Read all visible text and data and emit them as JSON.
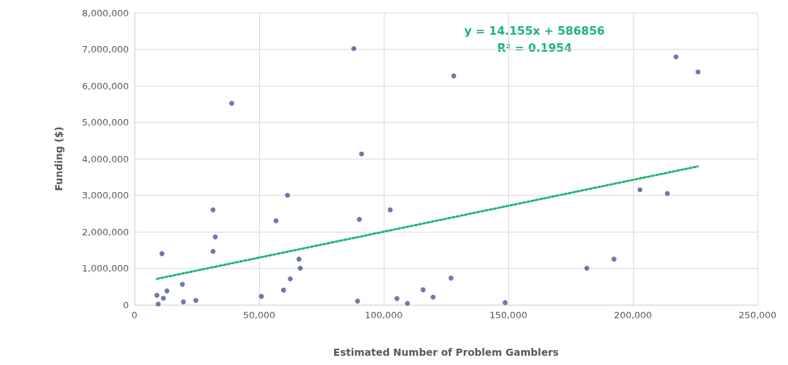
{
  "chart_data": {
    "type": "scatter",
    "xlabel": "Estimated Number of Problem Gamblers",
    "ylabel": "Funding ($)",
    "xlim": [
      0,
      250000
    ],
    "xticks": [
      0,
      {
        "value": 50000,
        "label": "50,000"
      },
      {
        "value": 100000,
        "label": "100,000"
      },
      {
        "value": 150000,
        "label": "150,000"
      },
      {
        "value": 200000,
        "label": "200,000"
      },
      {
        "value": 250000,
        "label": "250,000"
      }
    ],
    "ylim": [
      0,
      8000000
    ],
    "yticks": [
      0,
      {
        "value": 1000000,
        "label": "1,000,000"
      },
      {
        "value": 2000000,
        "label": "2,000,000"
      },
      {
        "value": 3000000,
        "label": "3,000,000"
      },
      {
        "value": 4000000,
        "label": "4,000,000"
      },
      {
        "value": 5000000,
        "label": "5,000,000"
      },
      {
        "value": 6000000,
        "label": "6,000,000"
      },
      {
        "value": 7000000,
        "label": "7,000,000"
      },
      {
        "value": 8000000,
        "label": "8,000,000"
      }
    ],
    "grid": true,
    "marker": "circle",
    "annotations": [
      "y = 14.155x + 586856",
      "R² = 0.1954"
    ],
    "series": [
      {
        "color": "#4a5899",
        "x": [
          9000,
          9500,
          11600,
          13000,
          11000,
          19200,
          19600,
          24600,
          31500,
          32400,
          31500,
          50900,
          56800,
          61400,
          59800,
          62500,
          66000,
          66500,
          39000,
          88000,
          128100,
          91100,
          90200,
          102600,
          89500,
          105300,
          109500,
          115800,
          119800,
          127000,
          148700,
          202800,
          213800,
          181500,
          192400,
          217300,
          226100
        ],
        "values": [
          260000,
          20000,
          180000,
          380000,
          1400000,
          560000,
          80000,
          120000,
          2600000,
          1860000,
          1460000,
          230000,
          2300000,
          3000000,
          400000,
          710000,
          1250000,
          1000000,
          5520000,
          7020000,
          6270000,
          4130000,
          2340000,
          2600000,
          100000,
          170000,
          40000,
          410000,
          210000,
          730000,
          60000,
          3150000,
          3050000,
          1000000,
          1250000,
          6790000,
          6380000
        ]
      },
      {
        "type": "line",
        "color": "#1db47c",
        "line_style": "dotted",
        "marker": "none",
        "x": [
          9000,
          226000
        ],
        "values": [
          710000,
          3790000
        ]
      }
    ]
  }
}
